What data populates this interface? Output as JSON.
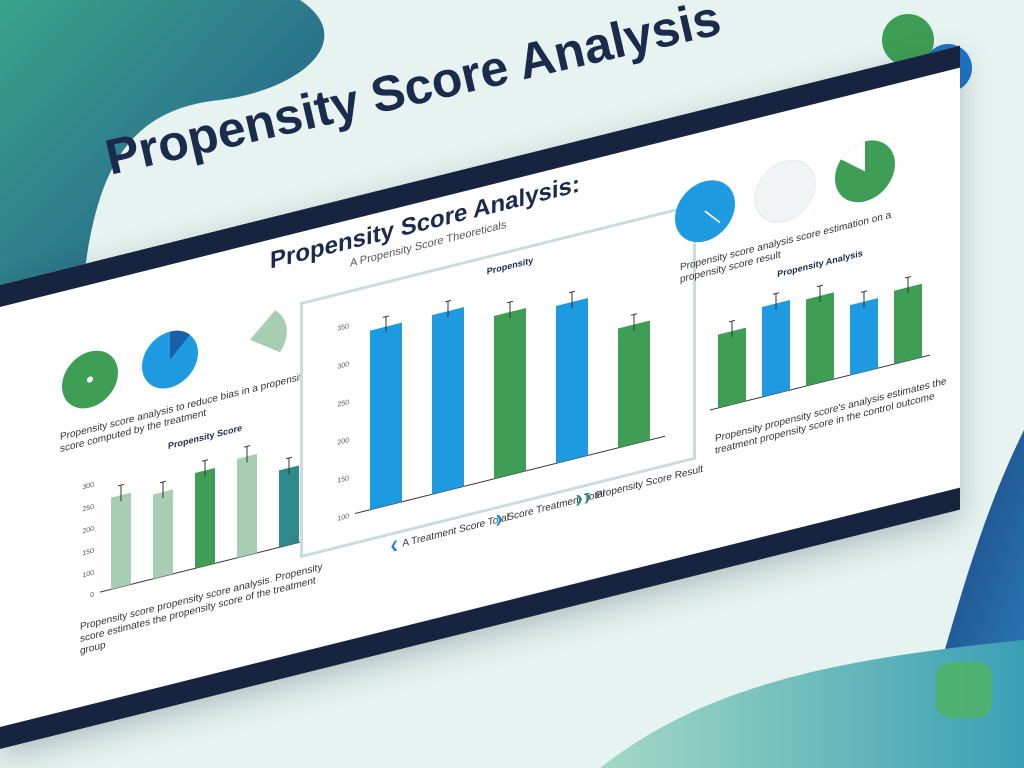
{
  "headline": "Propensity Score Analysis",
  "board": {
    "title": "Propensity Score Analysis:",
    "subtitle": "A Propensity Score Theoreticals",
    "left_caption": "Propensity score analysis to reduce bias in a propensity score computed by the treatment",
    "left_bottom_caption": "Propensity score propensity score analysis. Propensity score estimates the propensity score of the treatment group",
    "right_caption": "Propensity score analysis score estimation on a propensity score result",
    "right_bottom_caption": "Propensity propensity score's analysis estimates the treatment propensity score in the control outcome",
    "nav": [
      {
        "label": "A Treatment Score Total"
      },
      {
        "label": "Score Treatment Total"
      },
      {
        "label": "Propensity Score Result"
      }
    ]
  },
  "colors": {
    "navy": "#16243f",
    "blue": "#1e9be0",
    "green": "#3f9e55",
    "light_green": "#a7ceb3",
    "teal": "#2d8a8a"
  },
  "chart_data": [
    {
      "type": "bar",
      "title": "Propensity Score",
      "y_ticks": [
        "0",
        "100",
        "150",
        "200",
        "250",
        "300"
      ],
      "values": [
        250,
        230,
        260,
        270,
        210
      ],
      "colors": [
        "#a7ceb3",
        "#a7ceb3",
        "#3f9e55",
        "#a7ceb3",
        "#2d8a8a"
      ],
      "ylim": [
        0,
        300
      ]
    },
    {
      "type": "bar",
      "title": "Propensity",
      "y_ticks": [
        "100",
        "150",
        "200",
        "250",
        "300",
        "350"
      ],
      "values": [
        330,
        330,
        300,
        290,
        220
      ],
      "colors": [
        "#1e9be0",
        "#1e9be0",
        "#3f9e55",
        "#1e9be0",
        "#3f9e55"
      ],
      "ylim": [
        0,
        350
      ]
    },
    {
      "type": "bar",
      "title": "Propensity Analysis",
      "values": [
        220,
        270,
        260,
        210,
        220
      ],
      "colors": [
        "#3f9e55",
        "#1e9be0",
        "#3f9e55",
        "#1e9be0",
        "#3f9e55"
      ],
      "ylim": [
        0,
        300
      ]
    }
  ]
}
